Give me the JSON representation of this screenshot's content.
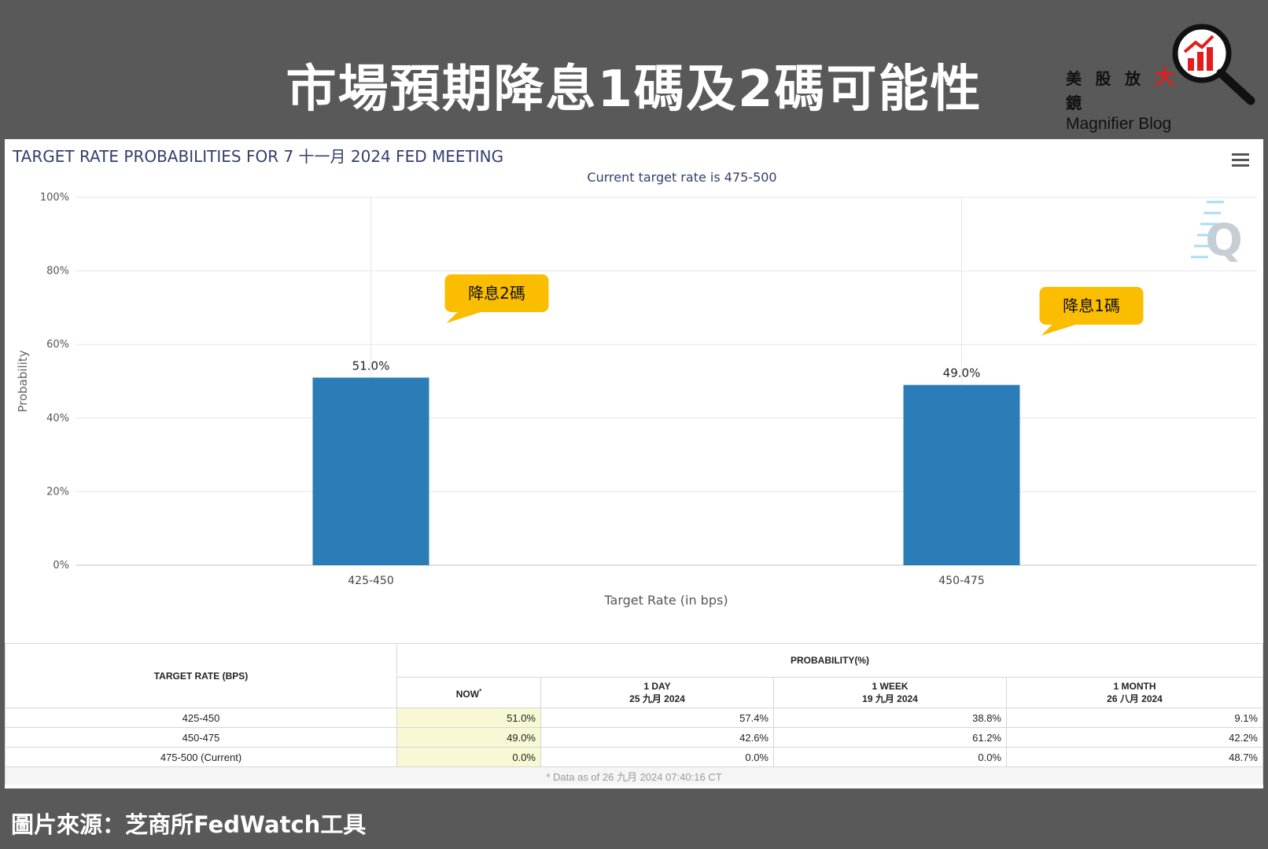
{
  "headline": "市場預期降息1碼及2碼可能性",
  "brand": {
    "cn_prefix": "美 股 放 ",
    "cn_accent": "大",
    "cn_suffix": " 鏡",
    "en": "Magnifier Blog"
  },
  "panel": {
    "title": "TARGET RATE PROBABILITIES FOR 7 十一月 2024 FED MEETING"
  },
  "chart_data": {
    "type": "bar",
    "title": "TARGET RATE PROBABILITIES FOR 7 十一月 2024 FED MEETING",
    "subtitle": "Current target rate is 475-500",
    "categories": [
      "425-450",
      "450-475"
    ],
    "values": [
      51.0,
      49.0
    ],
    "data_labels": [
      "51.0%",
      "49.0%"
    ],
    "xlabel": "Target Rate (in bps)",
    "ylabel": "Probability",
    "ylim": [
      0,
      100
    ],
    "yticks": [
      "0%",
      "20%",
      "40%",
      "60%",
      "80%",
      "100%"
    ],
    "bar_color": "#2a7db7",
    "grid": true,
    "annotations": [
      "降息2碼",
      "降息1碼"
    ],
    "annotation_color": "#fbbd00"
  },
  "table": {
    "rate_header": "TARGET RATE (BPS)",
    "prob_header": "PROBABILITY(%)",
    "columns": [
      {
        "label": "NOW",
        "sup": "*",
        "date": ""
      },
      {
        "label": "1 DAY",
        "date": "25 九月 2024"
      },
      {
        "label": "1 WEEK",
        "date": "19 九月 2024"
      },
      {
        "label": "1 MONTH",
        "date": "26 八月 2024"
      }
    ],
    "rows": [
      {
        "rate": "425-450",
        "now": "51.0%",
        "day": "57.4%",
        "week": "38.8%",
        "month": "9.1%"
      },
      {
        "rate": "450-475",
        "now": "49.0%",
        "day": "42.6%",
        "week": "61.2%",
        "month": "42.2%"
      },
      {
        "rate": "475-500 (Current)",
        "now": "0.0%",
        "day": "0.0%",
        "week": "0.0%",
        "month": "48.7%"
      }
    ],
    "footnote": "* Data as of 26 九月 2024 07:40:16 CT"
  },
  "source": "圖片來源：芝商所FedWatch工具",
  "icons": [
    "magnifier-logo-icon",
    "hamburger-menu-icon",
    "watermark-q-icon"
  ]
}
